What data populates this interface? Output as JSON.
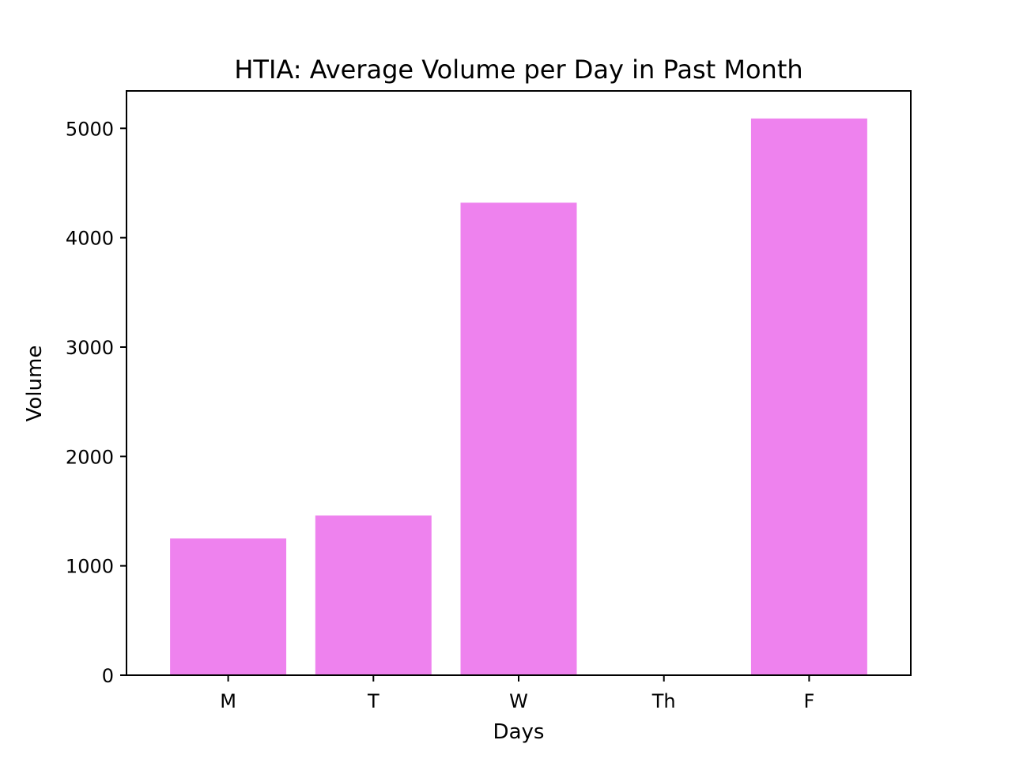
{
  "chart_data": {
    "type": "bar",
    "title": "HTIA: Average Volume per Day in Past Month",
    "xlabel": "Days",
    "ylabel": "Volume",
    "categories": [
      "M",
      "T",
      "W",
      "Th",
      "F"
    ],
    "values": [
      1250,
      1460,
      4320,
      0,
      5090
    ],
    "ylim": [
      0,
      5342
    ],
    "yticks": [
      0,
      1000,
      2000,
      3000,
      4000,
      5000
    ],
    "grid": false,
    "legend": "none",
    "bar_color": "#ee82ee"
  }
}
